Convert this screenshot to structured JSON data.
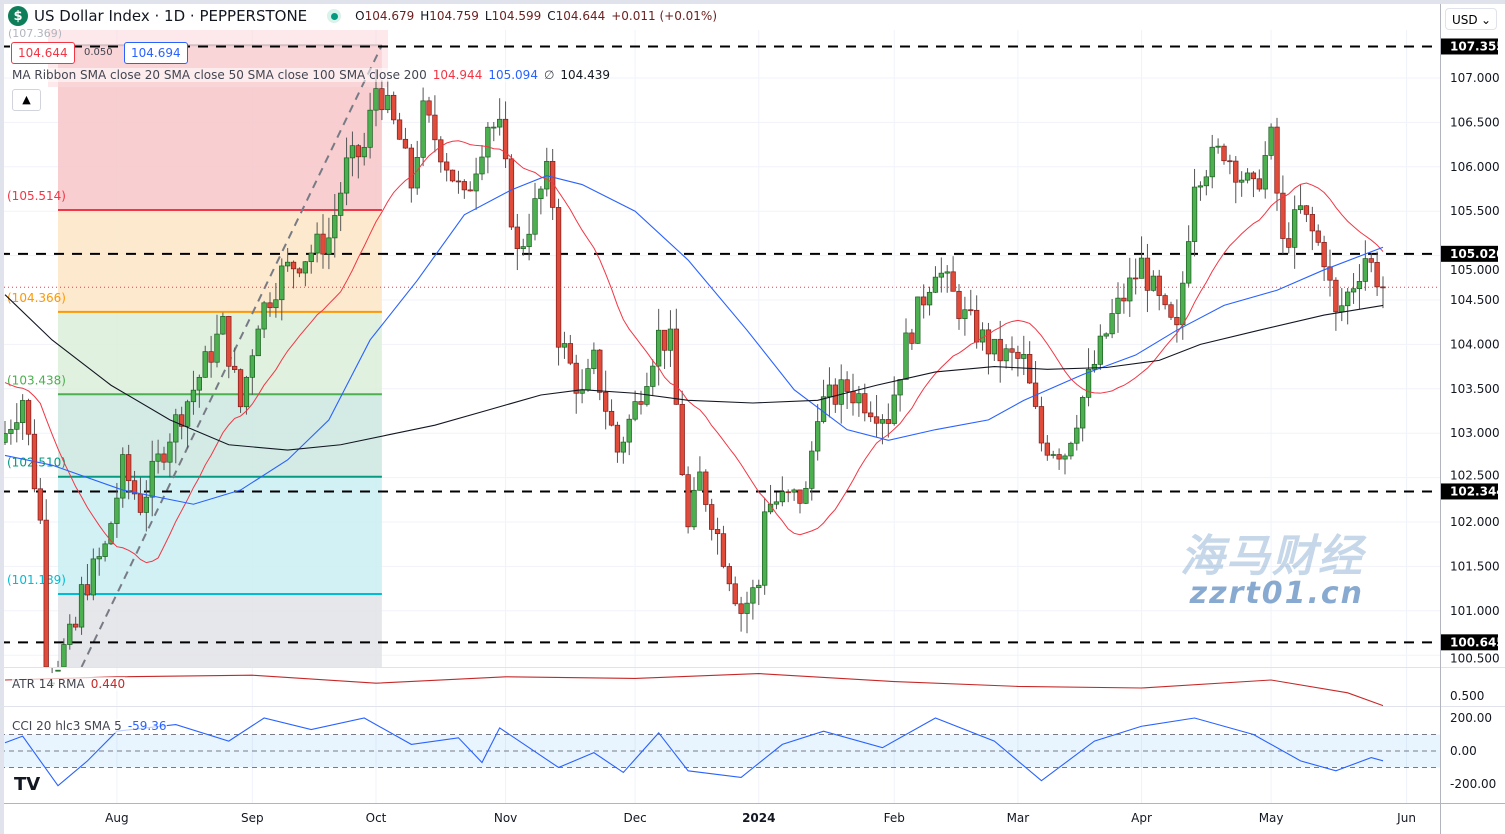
{
  "header": {
    "symbol_icon": "dollar-circle-icon",
    "title": "US Dollar Index · 1D · PEPPERSTONE",
    "market_status": "market-open-dot",
    "ohlc": {
      "o_label": "O",
      "o": "104.679",
      "h_label": "H",
      "h": "104.759",
      "l_label": "L",
      "l": "104.599",
      "c_label": "C",
      "c": "104.644",
      "change": "+0.011 (+0.01%)"
    }
  },
  "measure": {
    "left": "104.644",
    "mid": "0.050",
    "right": "104.694",
    "top_label": "(107.369)"
  },
  "ma_ribbon": {
    "label": "MA Ribbon SMA close 20 SMA close 50 SMA close 100 SMA close 200",
    "v20": "104.944",
    "v50": "105.094",
    "v100": "∅",
    "v200": "104.439"
  },
  "currency": "USD",
  "colors": {
    "up": "#4caf50",
    "down": "#e04b3a",
    "sma20": "#f23645",
    "sma50": "#2962ff",
    "sma200": "#131722",
    "atr": "#c62828",
    "cci": "#2962ff",
    "current": "#f23645"
  },
  "watermark": {
    "line1": "海马财经",
    "line2": "zzrt01.cn"
  },
  "chart_data": {
    "type": "candlestick",
    "title": "US Dollar Index · 1D · PEPPERSTONE",
    "ylim": [
      100.3,
      107.6
    ],
    "yticks": [
      "107.000",
      "106.500",
      "106.000",
      "105.500",
      "105.000",
      "104.500",
      "104.000",
      "103.500",
      "103.000",
      "102.500",
      "102.000",
      "101.500",
      "101.000",
      "100.500"
    ],
    "x_labels": [
      [
        "2023-08-01",
        "Aug"
      ],
      [
        "2023-09-01",
        "Sep"
      ],
      [
        "2023-10-02",
        "Oct"
      ],
      [
        "2023-11-01",
        "Nov"
      ],
      [
        "2023-12-01",
        "Dec"
      ],
      [
        "2024-01-01",
        "2024"
      ],
      [
        "2024-02-01",
        "Feb"
      ],
      [
        "2024-03-01",
        "Mar"
      ],
      [
        "2024-04-01",
        "Apr"
      ],
      [
        "2024-05-01",
        "May"
      ],
      [
        "2024-06-03",
        "Jun"
      ]
    ],
    "date_range": [
      "2023-07-05",
      "2024-05-28"
    ],
    "close_path": [
      [
        "2023-07-05",
        103.0
      ],
      [
        "2023-07-10",
        103.4
      ],
      [
        "2023-07-13",
        102.0
      ],
      [
        "2023-07-14",
        100.2
      ],
      [
        "2023-07-21",
        100.8
      ],
      [
        "2023-07-24",
        101.2
      ],
      [
        "2023-07-28",
        101.7
      ],
      [
        "2023-08-02",
        102.6
      ],
      [
        "2023-08-07",
        102.2
      ],
      [
        "2023-08-14",
        103.0
      ],
      [
        "2023-08-18",
        103.5
      ],
      [
        "2023-08-25",
        104.2
      ],
      [
        "2023-08-30",
        103.3
      ],
      [
        "2023-09-04",
        104.3
      ],
      [
        "2023-09-08",
        104.8
      ],
      [
        "2023-09-14",
        105.0
      ],
      [
        "2023-09-20",
        105.2
      ],
      [
        "2023-09-25",
        106.0
      ],
      [
        "2023-09-28",
        106.2
      ],
      [
        "2023-10-02",
        106.9
      ],
      [
        "2023-10-03",
        106.8
      ],
      [
        "2023-10-06",
        106.3
      ],
      [
        "2023-10-10",
        105.8
      ],
      [
        "2023-10-12",
        106.6
      ],
      [
        "2023-10-17",
        106.2
      ],
      [
        "2023-10-23",
        105.6
      ],
      [
        "2023-10-27",
        106.5
      ],
      [
        "2023-10-31",
        106.4
      ],
      [
        "2023-11-03",
        105.0
      ],
      [
        "2023-11-10",
        105.9
      ],
      [
        "2023-11-13",
        105.6
      ],
      [
        "2023-11-14",
        104.1
      ],
      [
        "2023-11-20",
        103.4
      ],
      [
        "2023-11-22",
        103.8
      ],
      [
        "2023-11-28",
        102.8
      ],
      [
        "2023-12-01",
        103.3
      ],
      [
        "2023-12-07",
        104.1
      ],
      [
        "2023-12-11",
        104.0
      ],
      [
        "2023-12-14",
        101.9
      ],
      [
        "2023-12-18",
        102.5
      ],
      [
        "2023-12-27",
        101.0
      ],
      [
        "2024-01-01",
        101.3
      ],
      [
        "2024-01-02",
        102.2
      ],
      [
        "2024-01-11",
        102.3
      ],
      [
        "2024-01-15",
        103.3
      ],
      [
        "2024-01-22",
        103.5
      ],
      [
        "2024-01-31",
        103.2
      ],
      [
        "2024-02-05",
        104.0
      ],
      [
        "2024-02-12",
        104.9
      ],
      [
        "2024-02-19",
        104.3
      ],
      [
        "2024-02-26",
        103.9
      ],
      [
        "2024-03-04",
        103.8
      ],
      [
        "2024-03-07",
        102.9
      ],
      [
        "2024-03-13",
        102.8
      ],
      [
        "2024-03-19",
        103.6
      ],
      [
        "2024-03-25",
        104.3
      ],
      [
        "2024-04-01",
        104.9
      ],
      [
        "2024-04-05",
        104.3
      ],
      [
        "2024-04-09",
        104.1
      ],
      [
        "2024-04-12",
        105.9
      ],
      [
        "2024-04-19",
        106.2
      ],
      [
        "2024-04-26",
        105.7
      ],
      [
        "2024-05-01",
        106.3
      ],
      [
        "2024-05-03",
        105.1
      ],
      [
        "2024-05-08",
        105.5
      ],
      [
        "2024-05-14",
        105.0
      ],
      [
        "2024-05-16",
        104.3
      ],
      [
        "2024-05-21",
        104.7
      ],
      [
        "2024-05-23",
        105.0
      ],
      [
        "2024-05-28",
        104.644
      ]
    ],
    "sma50": [
      [
        "2023-07-05",
        102.75
      ],
      [
        "2023-07-17",
        102.64
      ],
      [
        "2023-08-02",
        102.36
      ],
      [
        "2023-08-18",
        102.2
      ],
      [
        "2023-08-30",
        102.36
      ],
      [
        "2023-09-11",
        102.7
      ],
      [
        "2023-09-20",
        103.15
      ],
      [
        "2023-09-29",
        104.05
      ],
      [
        "2023-10-11",
        104.72
      ],
      [
        "2023-10-23",
        105.46
      ],
      [
        "2023-11-02",
        105.74
      ],
      [
        "2023-11-10",
        105.9
      ],
      [
        "2023-11-20",
        105.8
      ],
      [
        "2023-12-01",
        105.5
      ],
      [
        "2023-12-14",
        104.95
      ],
      [
        "2023-12-28",
        104.16
      ],
      [
        "2024-01-09",
        103.49
      ],
      [
        "2024-01-22",
        103.04
      ],
      [
        "2024-01-31",
        102.92
      ],
      [
        "2024-02-12",
        103.04
      ],
      [
        "2024-02-23",
        103.15
      ],
      [
        "2024-03-04",
        103.37
      ],
      [
        "2024-03-18",
        103.66
      ],
      [
        "2024-03-29",
        103.88
      ],
      [
        "2024-04-09",
        104.16
      ],
      [
        "2024-04-19",
        104.44
      ],
      [
        "2024-05-02",
        104.61
      ],
      [
        "2024-05-14",
        104.84
      ],
      [
        "2024-05-28",
        105.094
      ]
    ],
    "sma200": [
      [
        "2023-07-05",
        104.56
      ],
      [
        "2023-07-17",
        104.05
      ],
      [
        "2023-07-31",
        103.54
      ],
      [
        "2023-08-14",
        103.15
      ],
      [
        "2023-08-28",
        102.87
      ],
      [
        "2023-09-11",
        102.81
      ],
      [
        "2023-09-22",
        102.87
      ],
      [
        "2023-10-04",
        102.98
      ],
      [
        "2023-10-16",
        103.09
      ],
      [
        "2023-10-27",
        103.26
      ],
      [
        "2023-11-09",
        103.43
      ],
      [
        "2023-11-20",
        103.49
      ],
      [
        "2023-12-01",
        103.45
      ],
      [
        "2023-12-14",
        103.37
      ],
      [
        "2023-12-29",
        103.34
      ],
      [
        "2024-01-15",
        103.37
      ],
      [
        "2024-01-29",
        103.54
      ],
      [
        "2024-02-12",
        103.69
      ],
      [
        "2024-02-26",
        103.75
      ],
      [
        "2024-03-08",
        103.72
      ],
      [
        "2024-03-22",
        103.74
      ],
      [
        "2024-04-04",
        103.82
      ],
      [
        "2024-04-15",
        104.0
      ],
      [
        "2024-04-29",
        104.16
      ],
      [
        "2024-05-14",
        104.33
      ],
      [
        "2024-05-28",
        104.439
      ]
    ],
    "horizontal_levels": [
      {
        "price": 107.355,
        "label": "107.355"
      },
      {
        "price": 105.02,
        "label": "105.020"
      },
      {
        "price": 102.344,
        "label": "102.344"
      },
      {
        "price": 100.645,
        "label": "100.645"
      }
    ],
    "current_price": {
      "price": 104.644
    },
    "fib": {
      "start": "2023-07-18",
      "end": "2023-10-03",
      "levels": [
        {
          "price": 107.369,
          "label": "(107.369)",
          "color": "#f7c5c8",
          "line": "#9598a1"
        },
        {
          "price": 105.514,
          "label": "(105.514)",
          "color": "#fde6c6",
          "line": "#f23645"
        },
        {
          "price": 104.366,
          "label": "(104.366)",
          "color": "#dcefd9",
          "line": "#ff9800"
        },
        {
          "price": 103.438,
          "label": "(103.438)",
          "color": "#cde8e0",
          "line": "#4caf50"
        },
        {
          "price": 102.51,
          "label": "(102.510)",
          "color": "#c9eef2",
          "line": "#089981"
        },
        {
          "price": 101.189,
          "label": "(101.189)",
          "color": "#e2e3e6",
          "line": "#00bcd4"
        }
      ],
      "trend_line": [
        [
          "2023-07-24",
          100.3
        ],
        [
          "2023-10-03",
          107.369
        ]
      ]
    },
    "atr": {
      "label": "ATR 14 RMA",
      "value": "0.440",
      "tick": "0.500",
      "path": [
        [
          "2023-07-05",
          0.6
        ],
        [
          "2023-08-01",
          0.62
        ],
        [
          "2023-09-01",
          0.63
        ],
        [
          "2023-10-01",
          0.58
        ],
        [
          "2023-11-01",
          0.62
        ],
        [
          "2023-12-01",
          0.61
        ],
        [
          "2024-01-01",
          0.64
        ],
        [
          "2024-02-01",
          0.59
        ],
        [
          "2024-03-01",
          0.56
        ],
        [
          "2024-04-01",
          0.55
        ],
        [
          "2024-05-01",
          0.6
        ],
        [
          "2024-05-20",
          0.52
        ],
        [
          "2024-05-28",
          0.44
        ]
      ]
    },
    "cci": {
      "label": "CCI 20 hlc3 SMA 5",
      "value": "-59.36",
      "ticks": [
        "200.00",
        "0.00",
        "-200.00"
      ],
      "path": [
        [
          "2023-07-05",
          50
        ],
        [
          "2023-07-10",
          90
        ],
        [
          "2023-07-18",
          -210
        ],
        [
          "2023-07-25",
          -60
        ],
        [
          "2023-08-01",
          120
        ],
        [
          "2023-08-15",
          160
        ],
        [
          "2023-08-28",
          60
        ],
        [
          "2023-09-05",
          200
        ],
        [
          "2023-09-15",
          130
        ],
        [
          "2023-09-28",
          200
        ],
        [
          "2023-10-10",
          40
        ],
        [
          "2023-10-20",
          80
        ],
        [
          "2023-10-26",
          -70
        ],
        [
          "2023-10-31",
          140
        ],
        [
          "2023-11-14",
          -100
        ],
        [
          "2023-11-22",
          -10
        ],
        [
          "2023-11-29",
          -130
        ],
        [
          "2023-12-07",
          110
        ],
        [
          "2023-12-14",
          -120
        ],
        [
          "2023-12-27",
          -160
        ],
        [
          "2024-01-05",
          40
        ],
        [
          "2024-01-16",
          120
        ],
        [
          "2024-01-30",
          20
        ],
        [
          "2024-02-12",
          200
        ],
        [
          "2024-02-26",
          60
        ],
        [
          "2024-03-07",
          -180
        ],
        [
          "2024-03-20",
          60
        ],
        [
          "2024-04-01",
          150
        ],
        [
          "2024-04-12",
          200
        ],
        [
          "2024-04-26",
          100
        ],
        [
          "2024-05-08",
          -60
        ],
        [
          "2024-05-16",
          -120
        ],
        [
          "2024-05-24",
          -40
        ],
        [
          "2024-05-28",
          -59.36
        ]
      ]
    }
  }
}
